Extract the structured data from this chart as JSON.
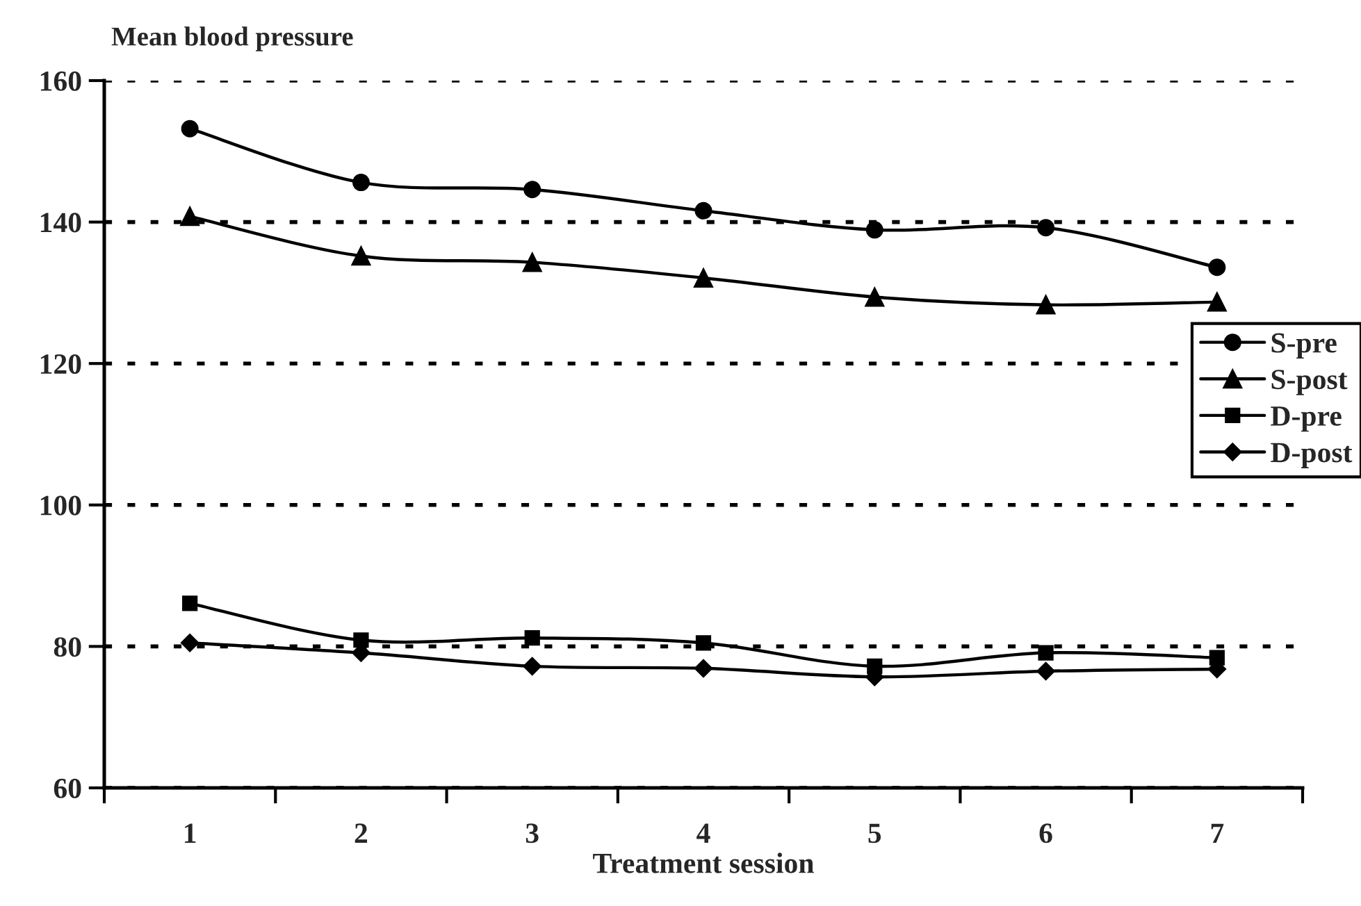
{
  "chart_data": {
    "type": "line",
    "title": "Mean blood pressure",
    "xlabel": "Treatment session",
    "categories": [
      "1",
      "2",
      "3",
      "4",
      "5",
      "6",
      "7"
    ],
    "series": [
      {
        "name": "S-pre",
        "color": "#000000",
        "marker": "circle",
        "values": [
          153.2,
          145.6,
          144.6,
          141.6,
          138.9,
          139.2,
          133.6
        ]
      },
      {
        "name": "S-post",
        "color": "#000000",
        "marker": "triangle",
        "values": [
          140.8,
          135.2,
          134.3,
          132.1,
          129.4,
          128.3,
          128.7
        ]
      },
      {
        "name": "D-pre",
        "color": "#000000",
        "marker": "square",
        "values": [
          86.1,
          80.9,
          81.2,
          80.5,
          77.2,
          79.1,
          78.4
        ]
      },
      {
        "name": "D-post",
        "color": "#000000",
        "marker": "diamond",
        "values": [
          80.5,
          79.1,
          77.2,
          76.9,
          75.7,
          76.5,
          76.8
        ]
      }
    ],
    "ylim": [
      60,
      160
    ],
    "yticks": [
      60,
      80,
      100,
      120,
      140,
      160
    ],
    "grid": "y",
    "legend": "right",
    "line_style": "solid"
  }
}
